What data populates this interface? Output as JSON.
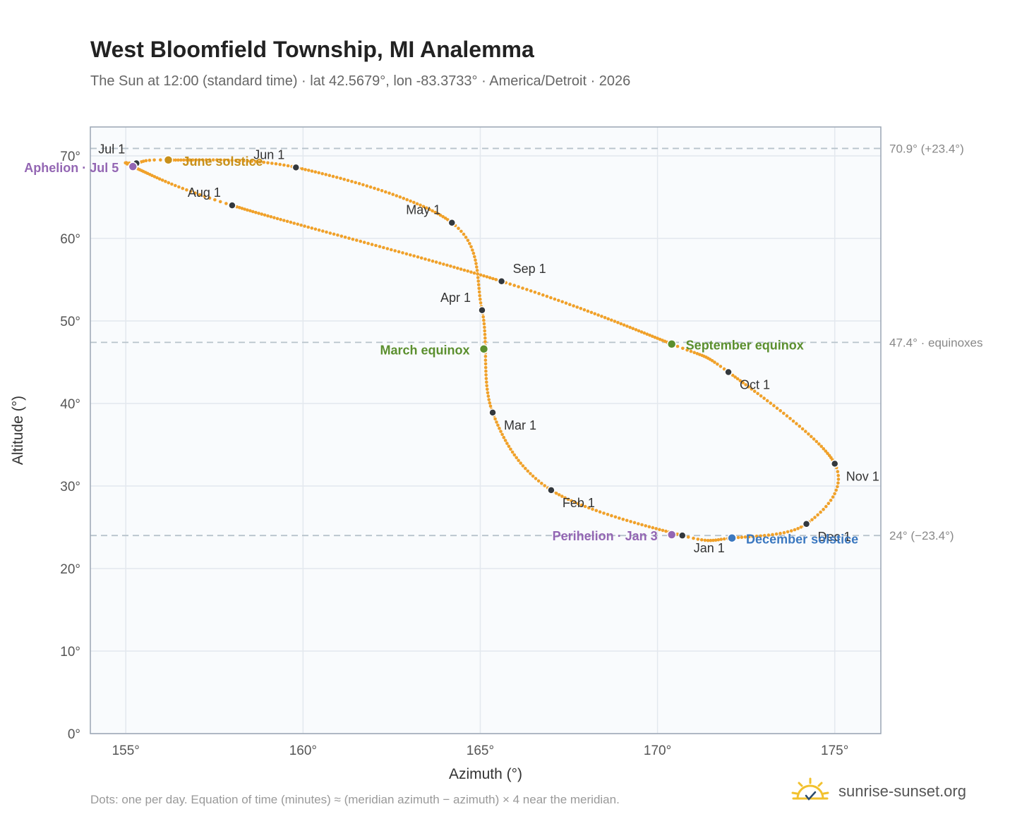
{
  "header": {
    "title": "West Bloomfield Township, MI Analemma",
    "subtitle": "The Sun at 12:00 (standard time) · lat 42.5679°, lon -83.3733° · America/Detroit · 2026"
  },
  "footer": {
    "note": "Dots: one per day. Equation of time (minutes) ≈ (meridian azimuth − azimuth) × 4 near the meridian.",
    "brand": "sunrise-sunset.org",
    "brand_icon": "sun-icon"
  },
  "colors": {
    "curve": "#f0a12a",
    "month": "#33383d",
    "solstice_june": "#c8901a",
    "solstice_dec": "#3b78c0",
    "equinox": "#5b8f2e",
    "apsis": "#9366b3",
    "ref_line": "#b8c3cc",
    "ref_label": "#888888",
    "plot_bg": "#f9fbfd",
    "grid": "#e3e8ee",
    "frame": "#9aa5b4"
  },
  "chart_data": {
    "type": "scatter",
    "xlabel": "Azimuth (°)",
    "ylabel": "Altitude (°)",
    "xlim": [
      154,
      176.3
    ],
    "ylim": [
      0,
      73.5
    ],
    "xticks": [
      155,
      160,
      165,
      170,
      175
    ],
    "yticks": [
      0,
      10,
      20,
      30,
      40,
      50,
      60,
      70
    ],
    "tick_suffix": "°",
    "grid": true,
    "reference_lines": [
      {
        "y": 70.9,
        "label": "70.9° (+23.4°)"
      },
      {
        "y": 47.4,
        "label": "47.4° · equinoxes"
      },
      {
        "y": 24.0,
        "label": "24° (−23.4°)"
      }
    ],
    "month_markers": [
      {
        "label": "Jan 1",
        "az": 170.7,
        "alt": 24.0
      },
      {
        "label": "Feb 1",
        "az": 167.0,
        "alt": 29.5
      },
      {
        "label": "Mar 1",
        "az": 165.35,
        "alt": 38.9
      },
      {
        "label": "Apr 1",
        "az": 165.05,
        "alt": 51.3
      },
      {
        "label": "May 1",
        "az": 164.2,
        "alt": 61.9
      },
      {
        "label": "Jun 1",
        "az": 159.8,
        "alt": 68.6
      },
      {
        "label": "Jul 1",
        "az": 155.3,
        "alt": 69.1
      },
      {
        "label": "Aug 1",
        "az": 158.0,
        "alt": 64.0
      },
      {
        "label": "Sep 1",
        "az": 165.6,
        "alt": 54.8
      },
      {
        "label": "Oct 1",
        "az": 172.0,
        "alt": 43.8
      },
      {
        "label": "Nov 1",
        "az": 175.0,
        "alt": 32.7
      },
      {
        "label": "Dec 1",
        "az": 174.2,
        "alt": 25.4
      }
    ],
    "events": [
      {
        "label": "Aphelion · Jul 5",
        "az": 155.2,
        "alt": 68.7,
        "kind": "apsis"
      },
      {
        "label": "June solstice",
        "az": 156.2,
        "alt": 69.5,
        "kind": "solstice_june"
      },
      {
        "label": "March equinox",
        "az": 165.1,
        "alt": 46.6,
        "kind": "equinox"
      },
      {
        "label": "September equinox",
        "az": 170.4,
        "alt": 47.2,
        "kind": "equinox"
      },
      {
        "label": "Perihelion · Jan 3",
        "az": 170.4,
        "alt": 24.1,
        "kind": "apsis"
      },
      {
        "label": "December solstice",
        "az": 172.1,
        "alt": 23.7,
        "kind": "solstice_dec"
      }
    ],
    "curve": {
      "points": [
        [
          170.7,
          24.0
        ],
        [
          167.0,
          29.5
        ],
        [
          165.35,
          38.9
        ],
        [
          165.05,
          51.3
        ],
        [
          164.2,
          61.9
        ],
        [
          159.8,
          68.6
        ],
        [
          156.2,
          69.5
        ],
        [
          155.3,
          69.1
        ],
        [
          155.2,
          68.7
        ],
        [
          158.0,
          64.0
        ],
        [
          165.6,
          54.8
        ],
        [
          170.4,
          47.2
        ],
        [
          172.0,
          43.8
        ],
        [
          175.0,
          32.7
        ],
        [
          174.2,
          25.4
        ],
        [
          172.1,
          23.7
        ]
      ],
      "closed": true
    }
  }
}
